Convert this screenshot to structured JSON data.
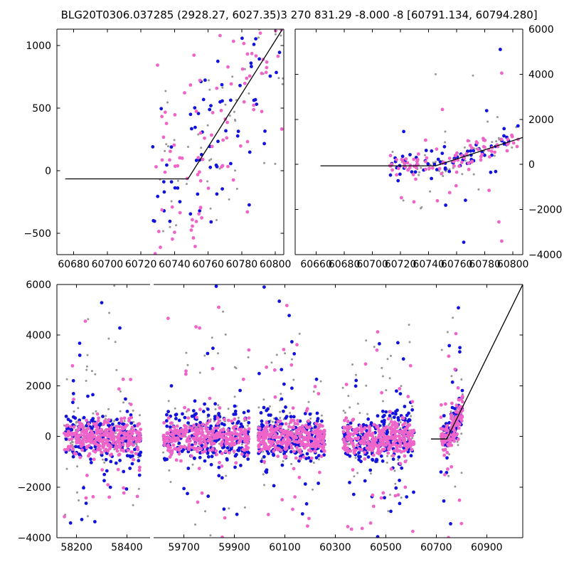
{
  "chart_data": {
    "type": "scatter",
    "series_colors": {
      "blue": "#1212dd",
      "pink": "#ee64c8",
      "gray": "#969696",
      "line": "#000000"
    },
    "marker_radius": {
      "blue": 2.4,
      "pink": 2.4,
      "gray": 1.5
    },
    "panels": [
      {
        "id": "top-left",
        "title": "BLG20T0306.037285 (2928.27, 6027.35)",
        "px": {
          "l": 80,
          "t": 41,
          "r": 399,
          "b": 358
        },
        "xlim": [
          60670,
          60805
        ],
        "ylim": [
          -670,
          1130
        ],
        "xticks": [
          60680,
          60700,
          60720,
          60740,
          60760,
          60780,
          60800
        ],
        "yticks": [
          -500,
          0,
          500,
          1000
        ],
        "ylabels": "left",
        "xlabels": true,
        "spines": [
          "left",
          "right",
          "top",
          "bottom"
        ],
        "line": [
          [
            60675,
            -65
          ],
          [
            60748,
            -65
          ],
          [
            60804,
            1125
          ]
        ],
        "clusters": [
          {
            "color": "gray",
            "n": 60,
            "x": [
              60727,
              60805
            ],
            "follow": true,
            "sigma": 380,
            "tail": {
              "p": 0.18,
              "sigma": 520,
              "bias": 0.4
            },
            "seed": 11
          },
          {
            "color": "blue",
            "n": 80,
            "x": [
              60727,
              60805
            ],
            "follow": true,
            "sigma": 380,
            "tail": {
              "p": 0.18,
              "sigma": 520,
              "bias": 0.35
            },
            "seed": 12
          },
          {
            "color": "pink",
            "n": 105,
            "x": [
              60727,
              60805
            ],
            "follow": true,
            "sigma": 340,
            "tail": {
              "p": 0.18,
              "sigma": 520,
              "bias": 0.35
            },
            "seed": 13
          }
        ],
        "extras": []
      },
      {
        "id": "top-right",
        "title": "3 270 831.29 -8.000 -8 [60791.134, 60794.280]",
        "px": {
          "l": 415,
          "t": 41,
          "r": 735,
          "b": 358
        },
        "xlim": [
          60645,
          60807
        ],
        "ylim": [
          -4000,
          6000
        ],
        "xticks": [
          60660,
          60680,
          60700,
          60720,
          60740,
          60760,
          60780,
          60800
        ],
        "yticks": [
          -4000,
          -2000,
          0,
          2000,
          4000,
          6000
        ],
        "ylabels": "right",
        "xlabels": true,
        "spines": [
          "left",
          "right",
          "top",
          "bottom"
        ],
        "line": [
          [
            60663,
            -60
          ],
          [
            60745,
            -60
          ],
          [
            60807,
            1200
          ]
        ],
        "clusters": [
          {
            "color": "gray",
            "n": 55,
            "x": [
              60712,
              60805
            ],
            "follow": true,
            "sigma": 330,
            "tail": {
              "p": 0.14,
              "sigma": 1500,
              "bias": 0.5
            },
            "seed": 21
          },
          {
            "color": "blue",
            "n": 72,
            "x": [
              60712,
              60805
            ],
            "follow": true,
            "sigma": 320,
            "tail": {
              "p": 0.07,
              "sigma": 1400,
              "bias": 0.4
            },
            "seed": 22
          },
          {
            "color": "pink",
            "n": 95,
            "x": [
              60712,
              60805
            ],
            "follow": true,
            "sigma": 300,
            "tail": {
              "p": 0.07,
              "sigma": 1300,
              "bias": 0.4
            },
            "seed": 23
          }
        ],
        "extras": [
          [
            60745,
            4000,
            "gray"
          ],
          [
            60791,
            5100,
            "blue"
          ],
          [
            60792,
            4050,
            "pink"
          ],
          [
            60789,
            2100,
            "gray"
          ],
          [
            60782,
            1900,
            "gray"
          ],
          [
            60765,
            -3450,
            "blue"
          ],
          [
            60792,
            -3400,
            "pink"
          ],
          [
            60790,
            -2550,
            "pink"
          ],
          [
            60735,
            -1900,
            "gray"
          ],
          [
            60722,
            -1600,
            "gray"
          ],
          [
            60755,
            -1250,
            "pink"
          ],
          [
            60783,
            -1150,
            "pink"
          ],
          [
            60741,
            -1200,
            "gray"
          ]
        ]
      },
      {
        "id": "bottom-left",
        "title": "",
        "px": {
          "l": 80,
          "t": 400,
          "r": 211,
          "b": 756
        },
        "xlim": [
          58122,
          58492
        ],
        "ylim": [
          -4000,
          6000
        ],
        "xticks": [
          58200,
          58400
        ],
        "yticks": [
          -4000,
          -2000,
          0,
          2000,
          4000,
          6000
        ],
        "ylabels": "left",
        "xlabels": true,
        "spines": [
          "left",
          "top",
          "bottom"
        ],
        "line": null,
        "clusters": [
          {
            "color": "gray",
            "n": 130,
            "x": [
              58150,
              58455
            ],
            "y0": 100,
            "sigma": 430,
            "tail": {
              "p": 0.2,
              "sigma": 1900,
              "bias": 0.7
            },
            "seed": 31
          },
          {
            "color": "blue",
            "n": 200,
            "x": [
              58150,
              58455
            ],
            "y0": -80,
            "sigma": 450,
            "tail": {
              "p": 0.07,
              "sigma": 1500,
              "bias": 0.45
            },
            "seed": 32
          },
          {
            "color": "pink",
            "n": 330,
            "x": [
              58150,
              58455
            ],
            "y0": -60,
            "sigma": 330,
            "tail": {
              "p": 0.05,
              "sigma": 1500,
              "bias": 0.5
            },
            "seed": 33
          }
        ],
        "extras": [
          [
            58235,
            4550,
            "pink"
          ],
          [
            58300,
            5280,
            "blue"
          ],
          [
            58372,
            4280,
            "blue"
          ],
          [
            58350,
            5950,
            "gray"
          ],
          [
            58330,
            4880,
            "gray"
          ],
          [
            58238,
            -2640,
            "blue"
          ],
          [
            58330,
            -2400,
            "pink"
          ],
          [
            58228,
            -2030,
            "blue"
          ],
          [
            58302,
            -1320,
            "pink"
          ],
          [
            58412,
            -1260,
            "blue"
          ]
        ]
      },
      {
        "id": "bottom-right",
        "title": "",
        "px": {
          "l": 216,
          "t": 400,
          "r": 735,
          "b": 756
        },
        "xlim": [
          59580,
          61043
        ],
        "ylim": [
          -4000,
          6000
        ],
        "xticks": [
          59700,
          59900,
          60100,
          60300,
          60500,
          60700,
          60900
        ],
        "yticks": [
          -4000,
          -2000,
          0,
          2000,
          4000,
          6000
        ],
        "ylabels": "none",
        "xlabels": true,
        "spines": [
          "right",
          "top",
          "bottom"
        ],
        "line": [
          [
            60679,
            -100
          ],
          [
            60742,
            -100
          ],
          [
            61043,
            6000
          ]
        ],
        "clusters": [
          {
            "color": "gray",
            "n": 120,
            "x": [
              59618,
              59958
            ],
            "y0": 100,
            "sigma": 430,
            "tail": {
              "p": 0.2,
              "sigma": 2000,
              "bias": 0.7
            },
            "seed": 41
          },
          {
            "color": "blue",
            "n": 230,
            "x": [
              59618,
              59958
            ],
            "y0": -60,
            "sigma": 480,
            "tail": {
              "p": 0.08,
              "sigma": 1700,
              "bias": 0.5
            },
            "seed": 42
          },
          {
            "color": "pink",
            "n": 330,
            "x": [
              59618,
              59958
            ],
            "y0": -60,
            "sigma": 340,
            "tail": {
              "p": 0.06,
              "sigma": 1600,
              "bias": 0.5
            },
            "seed": 43
          },
          {
            "color": "gray",
            "n": 110,
            "x": [
              59995,
              60258
            ],
            "y0": 100,
            "sigma": 430,
            "tail": {
              "p": 0.2,
              "sigma": 2000,
              "bias": 0.7
            },
            "seed": 44
          },
          {
            "color": "blue",
            "n": 220,
            "x": [
              59995,
              60258
            ],
            "y0": -60,
            "sigma": 480,
            "tail": {
              "p": 0.08,
              "sigma": 1700,
              "bias": 0.5
            },
            "seed": 45
          },
          {
            "color": "pink",
            "n": 320,
            "x": [
              59995,
              60258
            ],
            "y0": -60,
            "sigma": 340,
            "tail": {
              "p": 0.06,
              "sigma": 1600,
              "bias": 0.5
            },
            "seed": 46
          },
          {
            "color": "gray",
            "n": 115,
            "x": [
              60330,
              60612
            ],
            "y0": 50,
            "sigma": 450,
            "tail": {
              "p": 0.2,
              "sigma": 2000,
              "bias": 0.6
            },
            "seed": 47
          },
          {
            "color": "blue",
            "n": 225,
            "x": [
              60330,
              60612
            ],
            "y0": -80,
            "sigma": 500,
            "tail": {
              "p": 0.08,
              "sigma": 1700,
              "bias": 0.45
            },
            "seed": 48
          },
          {
            "color": "pink",
            "n": 320,
            "x": [
              60330,
              60612
            ],
            "y0": -80,
            "sigma": 350,
            "tail": {
              "p": 0.07,
              "sigma": 1700,
              "bias": 0.45
            },
            "seed": 49
          },
          {
            "color": "gray",
            "n": 60,
            "x": [
              60718,
              60806
            ],
            "follow": true,
            "sigma": 380,
            "tail": {
              "p": 0.15,
              "sigma": 1800,
              "bias": 0.5
            },
            "seed": 50
          },
          {
            "color": "blue",
            "n": 75,
            "x": [
              60718,
              60806
            ],
            "follow": true,
            "sigma": 400,
            "tail": {
              "p": 0.08,
              "sigma": 1500,
              "bias": 0.45
            },
            "seed": 51
          },
          {
            "color": "pink",
            "n": 125,
            "x": [
              60718,
              60806
            ],
            "follow": true,
            "sigma": 330,
            "tail": {
              "p": 0.06,
              "sigma": 1400,
              "bias": 0.45
            },
            "seed": 52
          }
        ],
        "extras": [
          [
            59828,
            5930,
            "blue"
          ],
          [
            59838,
            5100,
            "pink"
          ],
          [
            59855,
            4930,
            "gray"
          ],
          [
            59748,
            4330,
            "pink"
          ],
          [
            59762,
            4280,
            "pink"
          ],
          [
            59815,
            3480,
            "blue"
          ],
          [
            59835,
            3280,
            "gray"
          ],
          [
            59910,
            -3080,
            "blue"
          ],
          [
            59745,
            -3480,
            "gray"
          ],
          [
            59772,
            -2240,
            "pink"
          ],
          [
            59700,
            -2060,
            "blue"
          ],
          [
            59852,
            -3980,
            "pink"
          ],
          [
            60018,
            5900,
            "blue"
          ],
          [
            60078,
            5340,
            "blue"
          ],
          [
            60108,
            5170,
            "pink"
          ],
          [
            60128,
            3740,
            "blue"
          ],
          [
            60148,
            3620,
            "pink"
          ],
          [
            60100,
            3280,
            "gray"
          ],
          [
            60060,
            2620,
            "pink"
          ],
          [
            60170,
            -3060,
            "blue"
          ],
          [
            60190,
            -3540,
            "pink"
          ],
          [
            60210,
            -2100,
            "gray"
          ],
          [
            60238,
            -1420,
            "pink"
          ],
          [
            60468,
            4130,
            "pink"
          ],
          [
            60520,
            3180,
            "gray"
          ],
          [
            60570,
            3060,
            "blue"
          ],
          [
            60420,
            2860,
            "pink"
          ],
          [
            60448,
            -2320,
            "pink"
          ],
          [
            60452,
            -2760,
            "pink"
          ],
          [
            60495,
            -2420,
            "blue"
          ],
          [
            60510,
            -2950,
            "gray"
          ],
          [
            60440,
            -3420,
            "pink"
          ],
          [
            60468,
            -3960,
            "blue"
          ],
          [
            60555,
            -2650,
            "blue"
          ],
          [
            60788,
            5080,
            "blue"
          ],
          [
            60745,
            4120,
            "gray"
          ],
          [
            60778,
            4060,
            "pink"
          ],
          [
            60800,
            2250,
            "gray"
          ],
          [
            60800,
            -3440,
            "pink"
          ],
          [
            60757,
            -3450,
            "blue"
          ],
          [
            60792,
            -2520,
            "pink"
          ],
          [
            60775,
            -1980,
            "gray"
          ],
          [
            60730,
            -2550,
            "blue"
          ]
        ]
      }
    ]
  }
}
